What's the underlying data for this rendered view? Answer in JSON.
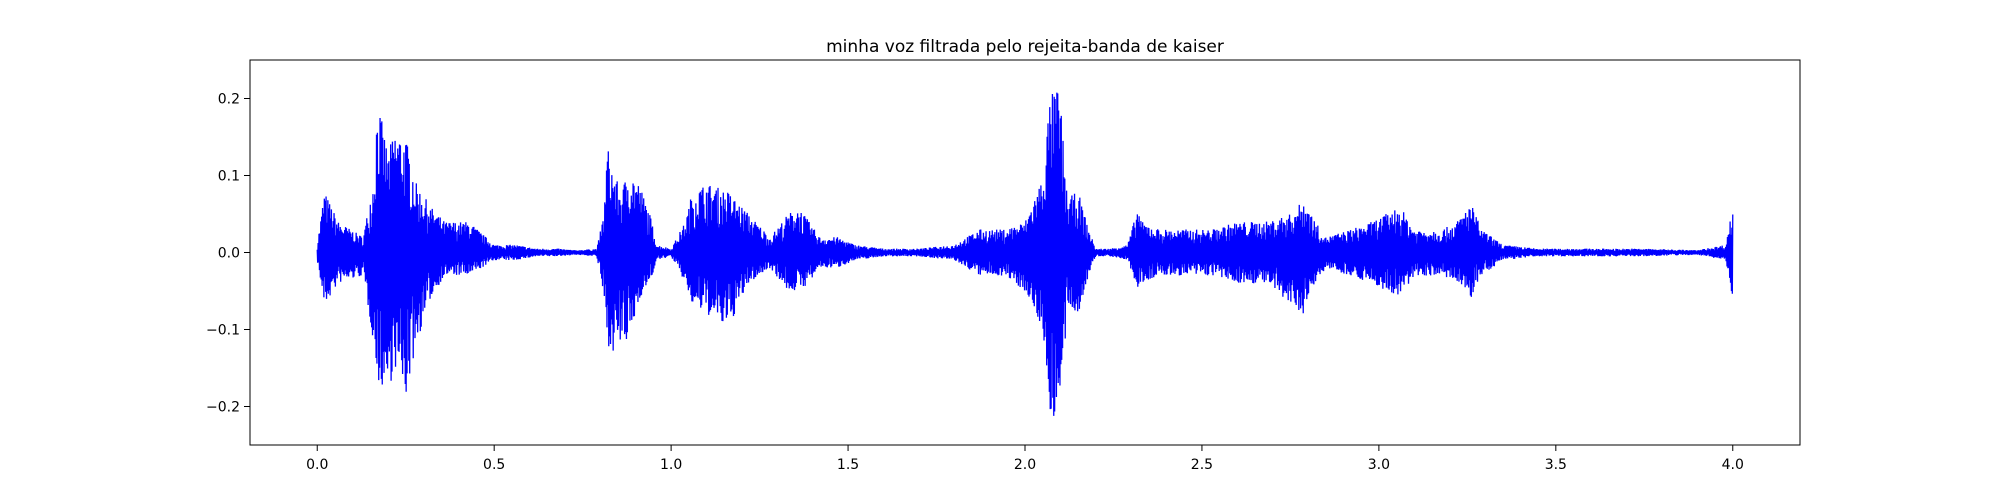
{
  "chart_data": {
    "type": "line",
    "title": "minha voz filtrada pelo rejeita-banda de kaiser",
    "xlabel": "",
    "ylabel": "",
    "xlim": [
      -0.19,
      4.19
    ],
    "ylim": [
      -0.25,
      0.25
    ],
    "xticks": [
      0.0,
      0.5,
      1.0,
      1.5,
      2.0,
      2.5,
      3.0,
      3.5,
      4.0
    ],
    "xtick_labels": [
      "0.0",
      "0.5",
      "1.0",
      "1.5",
      "2.0",
      "2.5",
      "3.0",
      "3.5",
      "4.0"
    ],
    "yticks": [
      0.2,
      0.1,
      0.0,
      -0.1,
      -0.2
    ],
    "ytick_labels": [
      "0.2",
      "0.1",
      "0.0",
      "−0.1",
      "−0.2"
    ],
    "grid": false,
    "series": [
      {
        "color": "#0000ff",
        "x_start": 0.0,
        "x_end": 4.0,
        "envelope": {
          "x": [
            0.0,
            0.02,
            0.06,
            0.13,
            0.16,
            0.17,
            0.2,
            0.22,
            0.25,
            0.28,
            0.32,
            0.36,
            0.43,
            0.5,
            0.56,
            0.62,
            0.68,
            0.73,
            0.79,
            0.81,
            0.82,
            0.84,
            0.86,
            0.88,
            0.91,
            0.94,
            0.96,
            1.0,
            1.04,
            1.06,
            1.1,
            1.16,
            1.22,
            1.28,
            1.33,
            1.36,
            1.39,
            1.42,
            1.47,
            1.52,
            1.6,
            1.7,
            1.8,
            1.87,
            1.94,
            2.0,
            2.05,
            2.07,
            2.09,
            2.1,
            2.11,
            2.12,
            2.15,
            2.18,
            2.2,
            2.24,
            2.29,
            2.32,
            2.33,
            2.38,
            2.45,
            2.53,
            2.6,
            2.68,
            2.75,
            2.79,
            2.82,
            2.85,
            2.92,
            2.98,
            3.02,
            3.06,
            3.1,
            3.18,
            3.22,
            3.26,
            3.29,
            3.35,
            3.45,
            3.6,
            3.75,
            3.9,
            3.98,
            4.0
          ],
          "upper": [
            0.01,
            0.08,
            0.04,
            0.02,
            0.1,
            0.2,
            0.13,
            0.16,
            0.15,
            0.09,
            0.06,
            0.04,
            0.04,
            0.01,
            0.01,
            0.005,
            0.005,
            0.003,
            0.005,
            0.05,
            0.14,
            0.1,
            0.08,
            0.11,
            0.09,
            0.05,
            0.01,
            0.005,
            0.04,
            0.08,
            0.09,
            0.08,
            0.05,
            0.02,
            0.05,
            0.06,
            0.04,
            0.02,
            0.02,
            0.01,
            0.005,
            0.005,
            0.01,
            0.03,
            0.03,
            0.04,
            0.1,
            0.2,
            0.22,
            0.2,
            0.13,
            0.07,
            0.08,
            0.03,
            0.005,
            0.005,
            0.01,
            0.06,
            0.04,
            0.03,
            0.03,
            0.03,
            0.04,
            0.04,
            0.05,
            0.07,
            0.04,
            0.02,
            0.03,
            0.04,
            0.05,
            0.06,
            0.03,
            0.03,
            0.04,
            0.065,
            0.03,
            0.01,
            0.005,
            0.005,
            0.005,
            0.003,
            0.01,
            0.06
          ],
          "lower": [
            -0.01,
            -0.07,
            -0.04,
            -0.03,
            -0.12,
            -0.17,
            -0.18,
            -0.15,
            -0.19,
            -0.12,
            -0.06,
            -0.03,
            -0.03,
            -0.01,
            -0.01,
            -0.005,
            -0.005,
            -0.003,
            -0.005,
            -0.06,
            -0.12,
            -0.13,
            -0.12,
            -0.12,
            -0.06,
            -0.04,
            -0.01,
            -0.005,
            -0.04,
            -0.07,
            -0.08,
            -0.1,
            -0.04,
            -0.02,
            -0.05,
            -0.05,
            -0.04,
            -0.02,
            -0.02,
            -0.01,
            -0.005,
            -0.005,
            -0.01,
            -0.03,
            -0.03,
            -0.05,
            -0.1,
            -0.21,
            -0.22,
            -0.2,
            -0.14,
            -0.08,
            -0.08,
            -0.03,
            -0.005,
            -0.005,
            -0.01,
            -0.05,
            -0.04,
            -0.03,
            -0.03,
            -0.03,
            -0.04,
            -0.04,
            -0.07,
            -0.08,
            -0.04,
            -0.02,
            -0.03,
            -0.04,
            -0.05,
            -0.06,
            -0.03,
            -0.03,
            -0.04,
            -0.06,
            -0.03,
            -0.01,
            -0.005,
            -0.005,
            -0.005,
            -0.003,
            -0.01,
            -0.06
          ]
        }
      }
    ]
  }
}
